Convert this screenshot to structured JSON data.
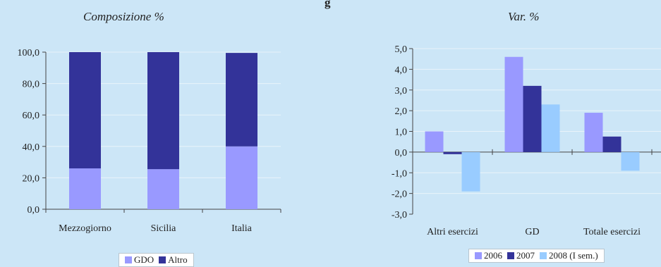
{
  "page": {
    "title_fragment": "g"
  },
  "charts": [
    {
      "subtitle": "Composizione %",
      "legend": [
        {
          "name": "GDO",
          "color": "#9999ff"
        },
        {
          "name": "Altro",
          "color": "#333399"
        }
      ]
    },
    {
      "subtitle": "Var. %",
      "legend": [
        {
          "name": "2006",
          "color": "#9999ff"
        },
        {
          "name": "2007",
          "color": "#333399"
        },
        {
          "name": "2008 (I sem.)",
          "color": "#99ccff"
        }
      ]
    }
  ],
  "chart_data": [
    {
      "type": "bar",
      "stacked": true,
      "categories": [
        "Mezzogiorno",
        "Sicilia",
        "Italia"
      ],
      "series": [
        {
          "name": "GDO",
          "values": [
            26.0,
            25.5,
            40.0
          ],
          "color": "#9999ff"
        },
        {
          "name": "Altro",
          "values": [
            74.0,
            74.5,
            59.5
          ],
          "color": "#333399"
        }
      ],
      "ylim": [
        0,
        100
      ],
      "yticks": [
        "0,0",
        "20,0",
        "40,0",
        "60,0",
        "80,0",
        "100,0"
      ],
      "grid": true,
      "legend_position": "bottom"
    },
    {
      "type": "bar",
      "categories": [
        "Altri esercizi",
        "GD",
        "Totale esercizi"
      ],
      "series": [
        {
          "name": "2006",
          "values": [
            1.0,
            4.6,
            1.9
          ],
          "color": "#9999ff"
        },
        {
          "name": "2007",
          "values": [
            -0.1,
            3.2,
            0.75
          ],
          "color": "#333399"
        },
        {
          "name": "2008 (I sem.)",
          "values": [
            -1.9,
            2.3,
            -0.9
          ],
          "color": "#99ccff"
        }
      ],
      "ylim": [
        -3,
        5
      ],
      "yticks": [
        "-3,0",
        "-2,0",
        "-1,0",
        "0,0",
        "1,0",
        "2,0",
        "3,0",
        "4,0",
        "5,0"
      ],
      "grid": true,
      "legend_position": "bottom"
    }
  ]
}
